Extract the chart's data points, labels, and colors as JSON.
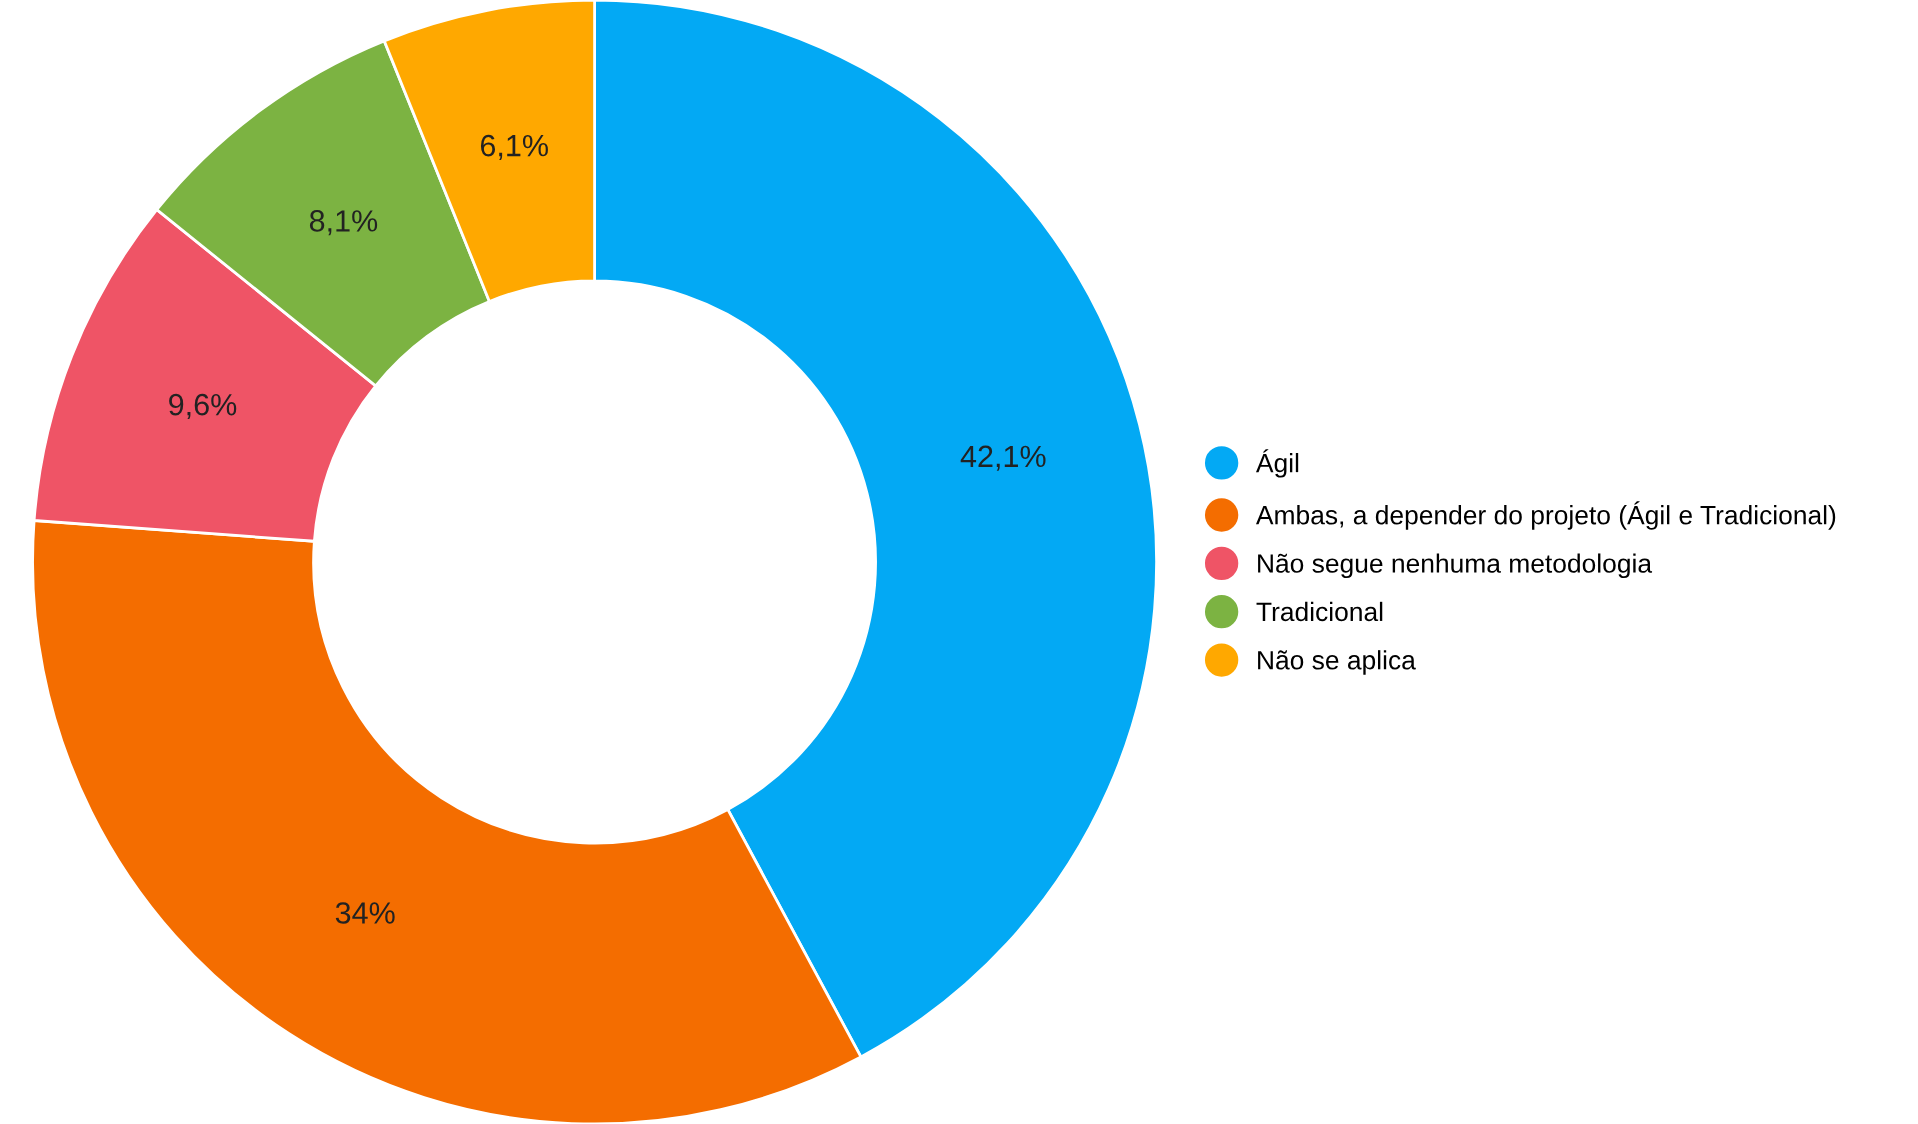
{
  "chart_data": {
    "type": "donut",
    "categories": [
      "Ágil",
      "Ambas, a depender do projeto (Ágil e Tradicional)",
      "Não segue nenhuma metodologia",
      "Tradicional",
      "Não se aplica"
    ],
    "values": [
      42.1,
      34,
      9.6,
      8.1,
      6.1
    ],
    "value_labels": [
      "42,1%",
      "34%",
      "9,6%",
      "8,1%",
      "6,1%"
    ],
    "colors": [
      "#03a9f4",
      "#f46d00",
      "#ef5466",
      "#7cb342",
      "#ffa800"
    ],
    "legend": "right"
  }
}
